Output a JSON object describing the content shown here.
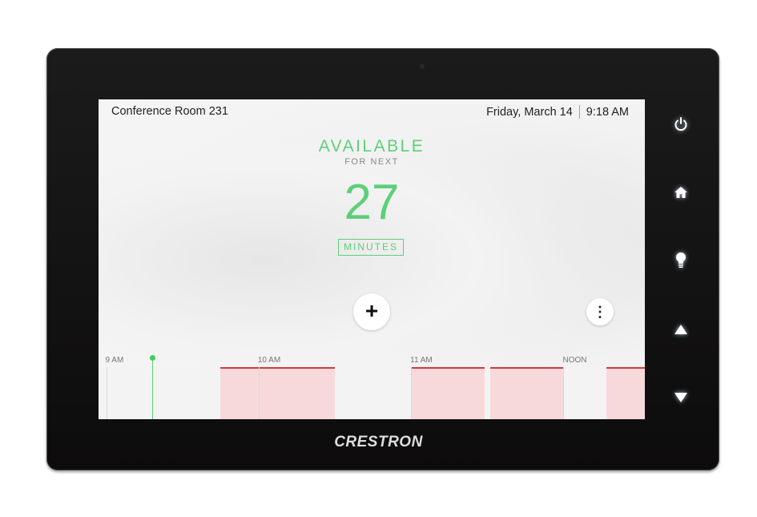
{
  "header": {
    "room_name": "Conference Room 231",
    "date": "Friday, March 14",
    "time": "9:18 AM"
  },
  "status": {
    "label": "AVAILABLE",
    "sublabel": "FOR NEXT",
    "count": "27",
    "units": "MINUTES",
    "color": "#5ecf7a"
  },
  "actions": {
    "add_icon": "plus-icon",
    "add_glyph": "+",
    "more_icon": "more-vertical-icon",
    "more_glyph": "⋮"
  },
  "timeline": {
    "hour_labels": [
      {
        "label": "9 AM",
        "time": "09:00"
      },
      {
        "label": "10 AM",
        "time": "10:00"
      },
      {
        "label": "11 AM",
        "time": "11:00"
      },
      {
        "label": "NOON",
        "time": "12:00"
      }
    ],
    "now": "09:18",
    "start": "08:57",
    "end": "12:32",
    "bookings": [
      {
        "start": "09:45",
        "end": "10:30"
      },
      {
        "start": "11:00",
        "end": "11:29"
      },
      {
        "start": "11:31",
        "end": "12:00"
      },
      {
        "start": "12:17",
        "end": "12:32"
      }
    ],
    "booked_color": "#d43a3a"
  },
  "device": {
    "brand": "CRESTRON",
    "buttons": [
      "power-icon",
      "home-icon",
      "lightbulb-icon",
      "arrow-up-icon",
      "arrow-down-icon"
    ]
  }
}
